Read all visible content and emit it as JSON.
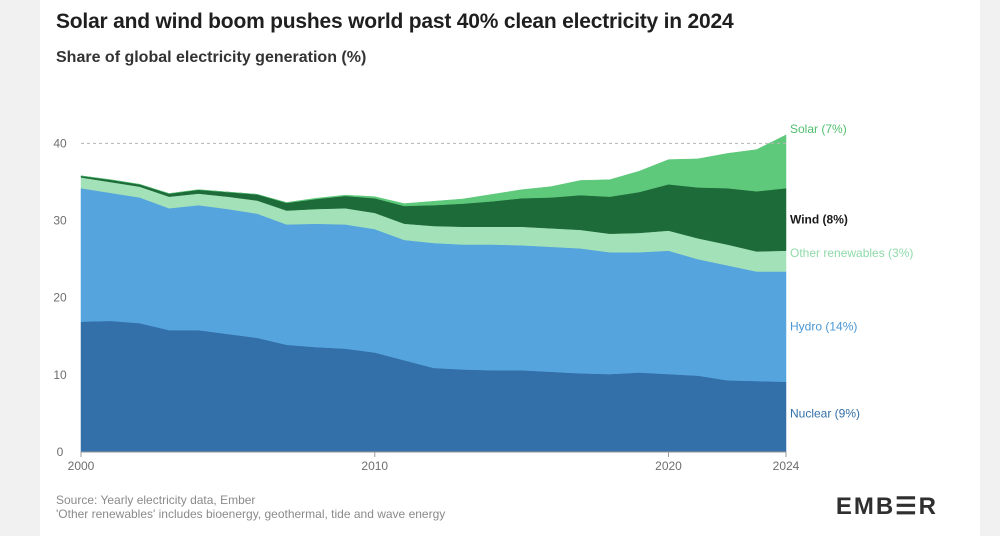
{
  "header": {
    "title": "Solar and wind boom pushes world past 40% clean electricity in 2024",
    "subtitle": "Share of global electricity generation (%)"
  },
  "footer": {
    "source": "Source: Yearly electricity data, Ember",
    "note": "'Other renewables' includes bioenergy, geothermal, tide and wave energy",
    "logo": "EMB☰R"
  },
  "chart_data": {
    "type": "area",
    "stacked": true,
    "x": [
      2000,
      2001,
      2002,
      2003,
      2004,
      2005,
      2006,
      2007,
      2008,
      2009,
      2010,
      2011,
      2012,
      2013,
      2014,
      2015,
      2016,
      2017,
      2018,
      2019,
      2020,
      2021,
      2022,
      2023,
      2024
    ],
    "xlim": [
      2000,
      2024
    ],
    "ylim": [
      0,
      42
    ],
    "xticks": [
      2000,
      2010,
      2020,
      2024
    ],
    "yticks": [
      0,
      10,
      20,
      30,
      40
    ],
    "reference_line": {
      "y": 40,
      "style": "dashed"
    },
    "series": [
      {
        "name": "Nuclear",
        "label": "Nuclear (9%)",
        "color": "#336fa8",
        "label_color": "#336fa8",
        "values": [
          16.9,
          17.0,
          16.7,
          15.8,
          15.8,
          15.3,
          14.8,
          13.9,
          13.6,
          13.4,
          12.9,
          11.9,
          10.9,
          10.7,
          10.6,
          10.6,
          10.4,
          10.2,
          10.1,
          10.3,
          10.1,
          9.9,
          9.3,
          9.2,
          9.1
        ]
      },
      {
        "name": "Hydro",
        "label": "Hydro (14%)",
        "color": "#55a4de",
        "label_color": "#4a97d3",
        "values": [
          17.3,
          16.6,
          16.3,
          15.8,
          16.2,
          16.2,
          16.1,
          15.6,
          16.0,
          16.1,
          16.0,
          15.6,
          16.2,
          16.2,
          16.3,
          16.2,
          16.2,
          16.2,
          15.8,
          15.6,
          16.0,
          15.1,
          14.9,
          14.2,
          14.3
        ]
      },
      {
        "name": "Other renewables",
        "label": "Other renewables (3%)",
        "color": "#a3e2b8",
        "label_color": "#8fdaa9",
        "values": [
          1.4,
          1.4,
          1.4,
          1.5,
          1.5,
          1.6,
          1.7,
          1.8,
          1.9,
          2.1,
          2.1,
          2.1,
          2.2,
          2.3,
          2.3,
          2.4,
          2.4,
          2.4,
          2.4,
          2.5,
          2.6,
          2.7,
          2.7,
          2.6,
          2.7
        ]
      },
      {
        "name": "Wind",
        "label": "Wind (8%)",
        "color": "#1e6b3a",
        "label_color": "#1a1a1a",
        "values": [
          0.2,
          0.3,
          0.3,
          0.4,
          0.5,
          0.6,
          0.8,
          1.0,
          1.3,
          1.6,
          1.9,
          2.3,
          2.7,
          3.0,
          3.3,
          3.7,
          4.0,
          4.5,
          4.8,
          5.3,
          6.0,
          6.6,
          7.3,
          7.8,
          8.1
        ]
      },
      {
        "name": "Solar",
        "label": "Solar (7%)",
        "color": "#5ec97b",
        "label_color": "#4fbf6e",
        "values": [
          0.0,
          0.0,
          0.0,
          0.0,
          0.0,
          0.0,
          0.0,
          0.05,
          0.1,
          0.1,
          0.2,
          0.3,
          0.5,
          0.6,
          0.9,
          1.1,
          1.4,
          1.9,
          2.2,
          2.7,
          3.2,
          3.7,
          4.5,
          5.4,
          6.9
        ]
      }
    ]
  }
}
